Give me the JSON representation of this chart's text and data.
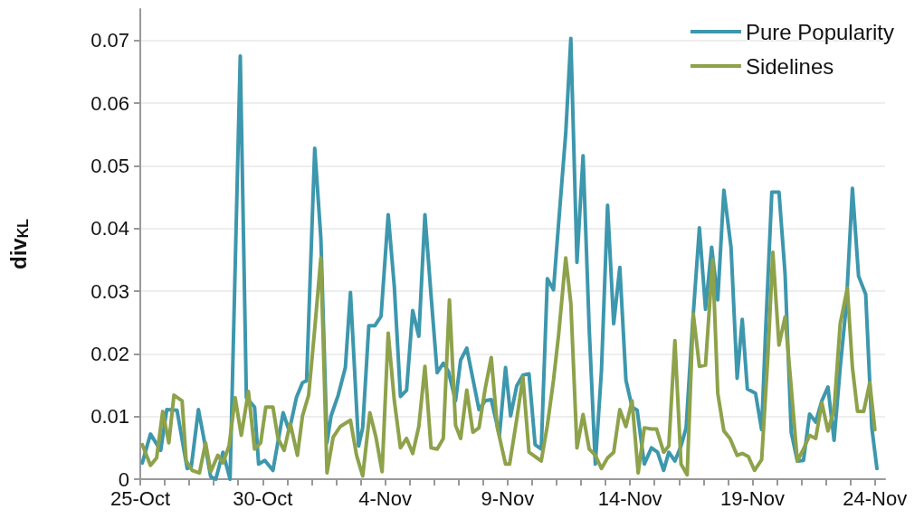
{
  "chart_data": {
    "type": "line",
    "ylabel": "div$_{KL}$",
    "xlim": [
      "--10-25",
      "--11-24T10:00"
    ],
    "ylim": [
      0,
      0.075
    ],
    "xticks": [
      {
        "value": "--10-25",
        "label": "25-Oct"
      },
      {
        "value": "--10-26",
        "label": null
      },
      {
        "value": "--10-27",
        "label": null
      },
      {
        "value": "--10-28",
        "label": null
      },
      {
        "value": "--10-29",
        "label": null
      },
      {
        "value": "--10-30",
        "label": "30-Oct"
      },
      {
        "value": "--10-31",
        "label": null
      },
      {
        "value": "--11-01",
        "label": null
      },
      {
        "value": "--11-02",
        "label": null
      },
      {
        "value": "--11-03",
        "label": null
      },
      {
        "value": "--11-04",
        "label": "4-Nov"
      },
      {
        "value": "--11-05",
        "label": null
      },
      {
        "value": "--11-06",
        "label": null
      },
      {
        "value": "--11-07",
        "label": null
      },
      {
        "value": "--11-08",
        "label": null
      },
      {
        "value": "--11-09",
        "label": "9-Nov"
      },
      {
        "value": "--11-10",
        "label": null
      },
      {
        "value": "--11-11",
        "label": null
      },
      {
        "value": "--11-12",
        "label": null
      },
      {
        "value": "--11-13",
        "label": null
      },
      {
        "value": "--11-14",
        "label": "14-Nov"
      },
      {
        "value": "--11-15",
        "label": null
      },
      {
        "value": "--11-16",
        "label": null
      },
      {
        "value": "--11-17",
        "label": null
      },
      {
        "value": "--11-18",
        "label": null
      },
      {
        "value": "--11-19",
        "label": "19-Nov"
      },
      {
        "value": "--11-20",
        "label": null
      },
      {
        "value": "--11-21",
        "label": null
      },
      {
        "value": "--11-22",
        "label": null
      },
      {
        "value": "--11-23",
        "label": null
      },
      {
        "value": "--11-24",
        "label": "24-Nov"
      }
    ],
    "yticks": [
      0,
      0.01,
      0.02,
      0.03,
      0.04,
      0.05,
      0.06,
      0.07
    ],
    "grid": "y",
    "legend": "top right",
    "marker": "none",
    "line_style": "solid",
    "series": [
      {
        "name": "Pure Popularity",
        "color": "#3d97ad",
        "x": [
          "--10-25T02:00",
          "--10-25T10:00",
          "--10-25T20:00",
          "--10-26T02:00",
          "--10-26T12:00",
          "--10-26T22:00",
          "--10-27T02:00",
          "--10-27T09:00",
          "--10-27T14:00",
          "--10-27T21:00",
          "--10-28T02:00",
          "--10-28T09:00",
          "--10-28T16:00",
          "--10-29T02:00",
          "--10-29T08:00",
          "--10-29T16:00",
          "--10-29T20:00",
          "--10-30T02:00",
          "--10-30T10:00",
          "--10-30T20:00",
          "--10-31T02:00",
          "--10-31T09:00",
          "--10-31T15:00",
          "--10-31T19:00",
          "--11-01T03:00",
          "--11-01T09:00",
          "--11-01T15:00",
          "--11-01T19:00",
          "--11-02T02:00",
          "--11-02T09:00",
          "--11-02T14:00",
          "--11-02T22:00",
          "--11-03T02:00",
          "--11-03T08:00",
          "--11-03T14:00",
          "--11-03T20:00",
          "--11-04T03:00",
          "--11-04T09:00",
          "--11-04T15:00",
          "--11-04T21:00",
          "--11-05T03:00",
          "--11-05T09:00",
          "--11-05T15:00",
          "--11-05T21:00",
          "--11-06T03:00",
          "--11-06T09:00",
          "--11-06T14:00",
          "--11-06T21:00",
          "--11-07T02:00",
          "--11-07T08:00",
          "--11-07T20:00",
          "--11-08T02:00",
          "--11-08T08:00",
          "--11-08T16:00",
          "--11-08T22:00",
          "--11-09T03:00",
          "--11-09T09:00",
          "--11-09T15:00",
          "--11-09T21:00",
          "--11-10T03:00",
          "--11-10T09:00",
          "--11-10T15:00",
          "--11-10T21:00",
          "--11-11T02:00",
          "--11-11T09:00",
          "--11-11T14:00",
          "--11-11T20:00",
          "--11-12T02:00",
          "--11-12T08:00",
          "--11-12T14:00",
          "--11-12T20:00",
          "--11-13T02:00",
          "--11-13T08:00",
          "--11-13T14:00",
          "--11-13T20:00",
          "--11-14T02:00",
          "--11-14T07:00",
          "--11-14T14:00",
          "--11-14T21:00",
          "--11-15T03:00",
          "--11-15T09:00",
          "--11-15T14:00",
          "--11-15T20:00",
          "--11-16T02:00",
          "--11-16T07:00",
          "--11-16T13:00",
          "--11-16T20:00",
          "--11-17T02:00",
          "--11-17T08:00",
          "--11-17T14:00",
          "--11-17T20:00",
          "--11-18T03:00",
          "--11-18T09:00",
          "--11-18T14:00",
          "--11-18T19:00",
          "--11-19T03:00",
          "--11-19T09:00",
          "--11-19T13:00",
          "--11-19T19:00",
          "--11-20T02:00",
          "--11-20T08:00",
          "--11-20T14:00",
          "--11-20T20:00",
          "--11-21T02:00",
          "--11-21T08:00",
          "--11-21T14:00",
          "--11-21T20:00",
          "--11-22T02:00",
          "--11-22T08:00",
          "--11-22T14:00",
          "--11-22T20:00",
          "--11-23T02:00",
          "--11-23T08:00",
          "--11-23T15:00",
          "--11-23T21:00",
          "--11-24T02:00"
        ],
        "values": [
          0.0026,
          0.0072,
          0.0046,
          0.0111,
          0.011,
          0.0017,
          0.002,
          0.0111,
          0.0068,
          0.0004,
          0.0,
          0.0043,
          0.0,
          0.0675,
          0.013,
          0.0115,
          0.0024,
          0.003,
          0.0014,
          0.0106,
          0.0077,
          0.013,
          0.0154,
          0.0157,
          0.0528,
          0.0384,
          0.0058,
          0.0101,
          0.0134,
          0.0178,
          0.0298,
          0.0053,
          0.0082,
          0.0245,
          0.0245,
          0.026,
          0.0422,
          0.0307,
          0.0132,
          0.0142,
          0.0269,
          0.0228,
          0.0422,
          0.0293,
          0.017,
          0.0185,
          0.0172,
          0.0125,
          0.019,
          0.0209,
          0.0111,
          0.0125,
          0.0127,
          0.007,
          0.0178,
          0.0101,
          0.0149,
          0.0166,
          0.0168,
          0.0055,
          0.0048,
          0.032,
          0.0302,
          0.0408,
          0.0552,
          0.0703,
          0.0346,
          0.0516,
          0.024,
          0.0024,
          0.0173,
          0.0437,
          0.0248,
          0.0338,
          0.0158,
          0.0115,
          0.011,
          0.0024,
          0.005,
          0.0043,
          0.0014,
          0.0043,
          0.0029,
          0.0053,
          0.0082,
          0.024,
          0.0401,
          0.0271,
          0.037,
          0.0286,
          0.0461,
          0.037,
          0.0161,
          0.0255,
          0.0144,
          0.0137,
          0.0079,
          0.024,
          0.0458,
          0.0458,
          0.0327,
          0.0075,
          0.0029,
          0.003,
          0.0104,
          0.0091,
          0.0125,
          0.0147,
          0.0062,
          0.0178,
          0.0278,
          0.0464,
          0.0324,
          0.0295,
          0.0082,
          0.0017
        ]
      },
      {
        "name": "Sidelines",
        "color": "#8da24a",
        "x": [
          "--10-25T02:00",
          "--10-25T10:00",
          "--10-25T16:00",
          "--10-25T22:00",
          "--10-26T04:00",
          "--10-26T09:00",
          "--10-26T17:00",
          "--10-26T21:00",
          "--10-27T03:00",
          "--10-27T10:00",
          "--10-27T16:00",
          "--10-27T21:00",
          "--10-28T04:00",
          "--10-28T09:00",
          "--10-28T15:00",
          "--10-28T21:00",
          "--10-29T03:00",
          "--10-29T10:00",
          "--10-29T16:00",
          "--10-29T22:00",
          "--10-30T03:00",
          "--10-30T10:00",
          "--10-30T15:00",
          "--10-30T21:00",
          "--10-31T03:00",
          "--10-31T10:00",
          "--10-31T15:00",
          "--10-31T21:00",
          "--11-01T03:00",
          "--11-01T09:00",
          "--11-01T15:00",
          "--11-01T21:00",
          "--11-02T04:00",
          "--11-02T14:00",
          "--11-02T20:00",
          "--11-03T02:00",
          "--11-03T09:00",
          "--11-03T15:00",
          "--11-03T21:00",
          "--11-04T03:00",
          "--11-04T09:00",
          "--11-04T15:00",
          "--11-04T21:00",
          "--11-05T03:00",
          "--11-05T09:00",
          "--11-05T15:00",
          "--11-05T21:00",
          "--11-06T03:00",
          "--11-06T09:00",
          "--11-06T15:00",
          "--11-06T21:00",
          "--11-07T02:00",
          "--11-07T08:00",
          "--11-07T14:00",
          "--11-07T20:00",
          "--11-08T02:00",
          "--11-08T08:00",
          "--11-08T14:00",
          "--11-08T22:00",
          "--11-09T02:00",
          "--11-09T09:00",
          "--11-09T15:00",
          "--11-09T21:00",
          "--11-10T09:00",
          "--11-10T15:00",
          "--11-10T21:00",
          "--11-11T02:00",
          "--11-11T09:00",
          "--11-11T14:00",
          "--11-11T20:00",
          "--11-12T02:00",
          "--11-12T08:00",
          "--11-12T14:00",
          "--11-12T20:00",
          "--11-13T02:00",
          "--11-13T08:00",
          "--11-13T14:00",
          "--11-13T20:00",
          "--11-14T02:00",
          "--11-14T08:00",
          "--11-14T14:00",
          "--11-14T21:00",
          "--11-15T02:00",
          "--11-15T09:00",
          "--11-15T14:00",
          "--11-15T20:00",
          "--11-16T02:00",
          "--11-16T08:00",
          "--11-16T14:00",
          "--11-16T20:00",
          "--11-17T02:00",
          "--11-17T09:00",
          "--11-17T14:00",
          "--11-17T20:00",
          "--11-18T02:00",
          "--11-18T09:00",
          "--11-18T14:00",
          "--11-18T20:00",
          "--11-19T02:00",
          "--11-19T09:00",
          "--11-19T15:00",
          "--11-19T20:00",
          "--11-20T02:00",
          "--11-20T08:00",
          "--11-20T14:00",
          "--11-20T20:00",
          "--11-21T02:00",
          "--11-21T08:00",
          "--11-21T14:00",
          "--11-21T20:00",
          "--11-22T02:00",
          "--11-22T08:00",
          "--11-22T14:00",
          "--11-22T21:00",
          "--11-23T02:00",
          "--11-23T07:00",
          "--11-23T13:00",
          "--11-23T19:00",
          "--11-24T00:00"
        ],
        "values": [
          0.0055,
          0.0022,
          0.0034,
          0.0108,
          0.0058,
          0.0134,
          0.0125,
          0.0029,
          0.0014,
          0.001,
          0.0058,
          0.0012,
          0.0038,
          0.0026,
          0.0053,
          0.013,
          0.007,
          0.014,
          0.0048,
          0.0058,
          0.0115,
          0.0115,
          0.0065,
          0.0046,
          0.0089,
          0.0038,
          0.0101,
          0.0134,
          0.024,
          0.0353,
          0.001,
          0.0067,
          0.0084,
          0.0094,
          0.0038,
          0.0005,
          0.0106,
          0.0067,
          0.0012,
          0.0233,
          0.0125,
          0.005,
          0.0065,
          0.0041,
          0.0084,
          0.018,
          0.005,
          0.0048,
          0.0065,
          0.0286,
          0.0086,
          0.0065,
          0.0142,
          0.0075,
          0.0082,
          0.0144,
          0.0194,
          0.0082,
          0.0024,
          0.0024,
          0.0096,
          0.0163,
          0.0043,
          0.0029,
          0.0086,
          0.0158,
          0.023,
          0.0353,
          0.0281,
          0.005,
          0.0103,
          0.0048,
          0.0038,
          0.0017,
          0.0034,
          0.0043,
          0.0111,
          0.0084,
          0.0125,
          0.001,
          0.0082,
          0.008,
          0.008,
          0.0043,
          0.0053,
          0.0221,
          0.0024,
          0.0007,
          0.0264,
          0.018,
          0.0182,
          0.035,
          0.0137,
          0.0077,
          0.0065,
          0.0038,
          0.0041,
          0.0036,
          0.0014,
          0.0031,
          0.0192,
          0.0362,
          0.0214,
          0.0259,
          0.0146,
          0.0029,
          0.0048,
          0.007,
          0.0065,
          0.0122,
          0.0077,
          0.0111,
          0.0248,
          0.0305,
          0.0178,
          0.0108,
          0.0108,
          0.0154,
          0.0079
        ]
      }
    ]
  }
}
